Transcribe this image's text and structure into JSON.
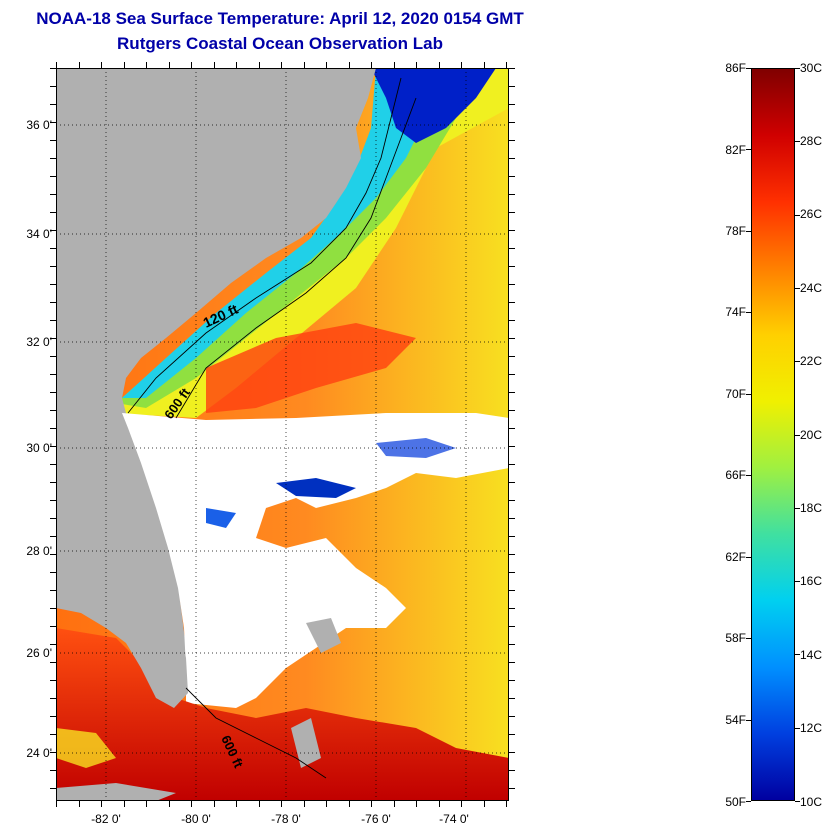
{
  "title": "NOAA-18 Sea Surface Temperature:  April 12, 2020 0154 GMT",
  "subtitle": "Rutgers Coastal Ocean Observation Lab",
  "map": {
    "lat_labels": [
      "36 0'",
      "34 0'",
      "32 0'",
      "30 0'",
      "28 0'",
      "26 0'",
      "24 0'"
    ],
    "lon_labels": [
      "-82 0'",
      "-80 0'",
      "-78 0'",
      "-76 0'",
      "-74 0'"
    ],
    "contour_labels": [
      "120 ft",
      "600 ft",
      "600 ft"
    ],
    "colors": {
      "land": "#b0b0b0",
      "cloud": "#ffffff",
      "cold": "#0010c0",
      "cyan": "#20d8e8",
      "green": "#80e050",
      "yellow": "#f0f020",
      "orange": "#ff7818",
      "red": "#e01010",
      "dark_red": "#a00000"
    }
  },
  "colorbar": {
    "f_labels": [
      "86F",
      "82F",
      "78F",
      "74F",
      "70F",
      "66F",
      "62F",
      "58F",
      "54F",
      "50F"
    ],
    "c_labels": [
      "30C",
      "28C",
      "26C",
      "24C",
      "22C",
      "20C",
      "18C",
      "16C",
      "14C",
      "12C",
      "10C"
    ],
    "range_f": [
      50,
      86
    ],
    "range_c": [
      10,
      30
    ],
    "stops": [
      "#800000",
      "#d00000",
      "#ff3000",
      "#ff8000",
      "#ffd000",
      "#f0f000",
      "#a0f040",
      "#40e0a0",
      "#00d0f0",
      "#0090ff",
      "#0040e0",
      "#0000a0"
    ]
  }
}
